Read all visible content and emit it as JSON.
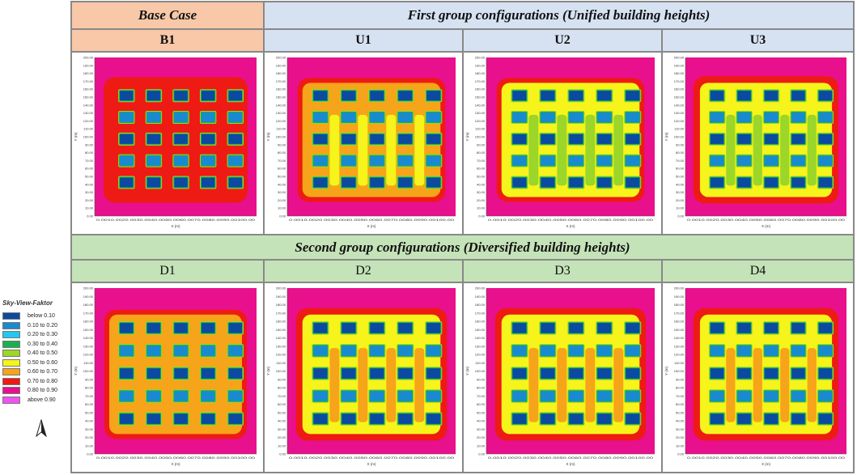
{
  "legend": {
    "title": "Sky-View-Faktor",
    "items": [
      {
        "label": "below 0.10",
        "color": "#0b4aa0"
      },
      {
        "label": "0.10 to 0.20",
        "color": "#1a8ad0"
      },
      {
        "label": "0.20 to 0.30",
        "color": "#22c8f0"
      },
      {
        "label": "0.30 to 0.40",
        "color": "#16b24e"
      },
      {
        "label": "0.40 to 0.50",
        "color": "#9bd629"
      },
      {
        "label": "0.50 to 0.60",
        "color": "#f6f41a"
      },
      {
        "label": "0.60 to 0.70",
        "color": "#f6a419"
      },
      {
        "label": "0.70 to 0.80",
        "color": "#ee1a14"
      },
      {
        "label": "0.80 to 0.90",
        "color": "#e8108c"
      },
      {
        "label": "above 0.90",
        "color": "#f052f0"
      }
    ]
  },
  "header": {
    "base_case": "Base Case",
    "first_group": "First group configurations (Unified building heights)",
    "second_group": "Second group configurations (Diversified building heights)"
  },
  "cases": {
    "row1": [
      "B1",
      "U1",
      "U2",
      "U3"
    ],
    "row2": [
      "D1",
      "D2",
      "D3",
      "D4"
    ]
  },
  "axis": {
    "xlabel": "X (m)",
    "ylabel": "Y (m)",
    "yticks": [
      "200.00",
      "190.00",
      "180.00",
      "170.00",
      "160.00",
      "150.00",
      "140.00",
      "130.00",
      "120.00",
      "110.00",
      "100.00",
      "90.00",
      "80.00",
      "70.00",
      "60.00",
      "50.00",
      "40.00",
      "30.00",
      "20.00",
      "10.00",
      "0.00"
    ],
    "xticks_text": "0.0010.0020.0030.0040.0050.0060.0070.0080.0090.00100.00"
  },
  "colors": {
    "orange_header": "#f8c8a8",
    "blue_header": "#d6e2f2",
    "green_header": "#c4e3b8"
  }
}
